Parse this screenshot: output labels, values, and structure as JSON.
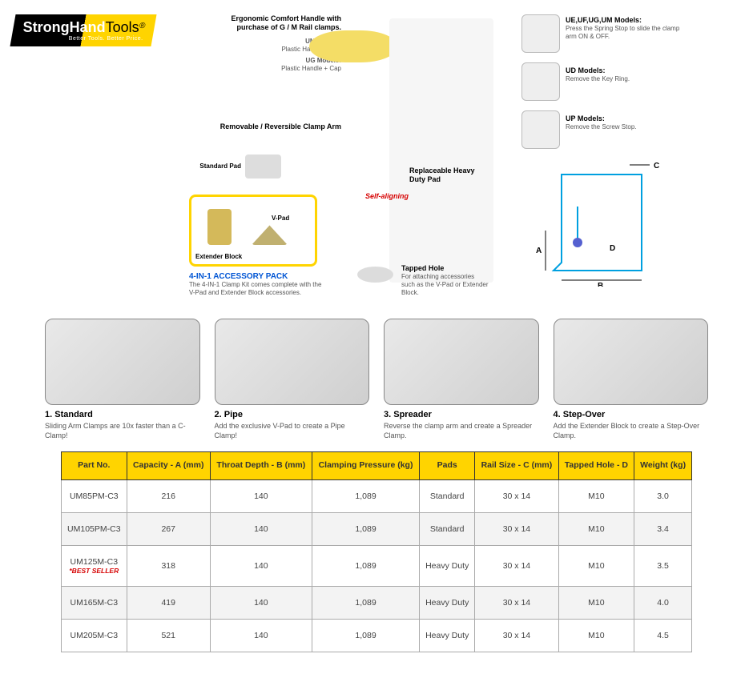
{
  "brand": {
    "name_strong": "StrongHand",
    "name_tools": "Tools",
    "reg": "®",
    "tagline": "Better Tools. Better Price."
  },
  "callouts": {
    "handle_title": "Ergonomic Comfort Handle with purchase of G / M Rail clamps.",
    "um_label": "UM Models:",
    "um_desc": "Plastic Handle ONLY",
    "ug_label": "UG Models:",
    "ug_desc": "Plastic Handle + Cap",
    "arm_label": "Removable / Reversible Clamp Arm",
    "standard_pad": "Standard Pad",
    "replaceable_pad": "Replaceable Heavy Duty Pad",
    "self_aligning": "Self-aligning",
    "extender_label": "Extender Block",
    "vpad_label": "V-Pad",
    "accessory_title": "4-IN-1 ACCESSORY PACK",
    "accessory_desc": "The 4-IN-1 Clamp Kit comes complete with the V-Pad and Extender Block accessories.",
    "tapped_title": "Tapped Hole",
    "tapped_desc": "For attaching accessories such as the V-Pad or Extender Block.",
    "ue_label": "UE,UF,UG,UM Models:",
    "ue_desc": "Press the Spring Stop to slide the clamp arm ON & OFF.",
    "ud_label": "UD Models:",
    "ud_desc": "Remove the Key Ring.",
    "up_label": "UP Models:",
    "up_desc": "Remove the Screw Stop.",
    "dim_a": "A",
    "dim_b": "B",
    "dim_c": "C",
    "dim_d": "D"
  },
  "usages": [
    {
      "title": "1. Standard",
      "desc": "Sliding Arm Clamps are 10x faster than a C-Clamp!"
    },
    {
      "title": "2. Pipe",
      "desc": "Add the exclusive V-Pad to create a Pipe Clamp!"
    },
    {
      "title": "3. Spreader",
      "desc": "Reverse the clamp arm and create a Spreader Clamp."
    },
    {
      "title": "4. Step-Over",
      "desc": "Add the Extender Block to create a Step-Over Clamp."
    }
  ],
  "table": {
    "headers": [
      "Part No.",
      "Capacity - A (mm)",
      "Throat Depth - B (mm)",
      "Clamping Pressure (kg)",
      "Pads",
      "Rail Size - C (mm)",
      "Tapped Hole - D",
      "Weight (kg)"
    ],
    "rows": [
      {
        "part": "UM85PM-C3",
        "best": false,
        "cells": [
          "216",
          "140",
          "1,089",
          "Standard",
          "30 x 14",
          "M10",
          "3.0"
        ]
      },
      {
        "part": "UM105PM-C3",
        "best": false,
        "cells": [
          "267",
          "140",
          "1,089",
          "Standard",
          "30 x 14",
          "M10",
          "3.4"
        ]
      },
      {
        "part": "UM125M-C3",
        "best": true,
        "cells": [
          "318",
          "140",
          "1,089",
          "Heavy Duty",
          "30 x 14",
          "M10",
          "3.5"
        ]
      },
      {
        "part": "UM165M-C3",
        "best": false,
        "cells": [
          "419",
          "140",
          "1,089",
          "Heavy Duty",
          "30 x 14",
          "M10",
          "4.0"
        ]
      },
      {
        "part": "UM205M-C3",
        "best": false,
        "cells": [
          "521",
          "140",
          "1,089",
          "Heavy Duty",
          "30 x 14",
          "M10",
          "4.5"
        ]
      }
    ],
    "best_seller_text": "*BEST SELLER",
    "header_bg": "#ffd400",
    "border_color": "#333333"
  }
}
